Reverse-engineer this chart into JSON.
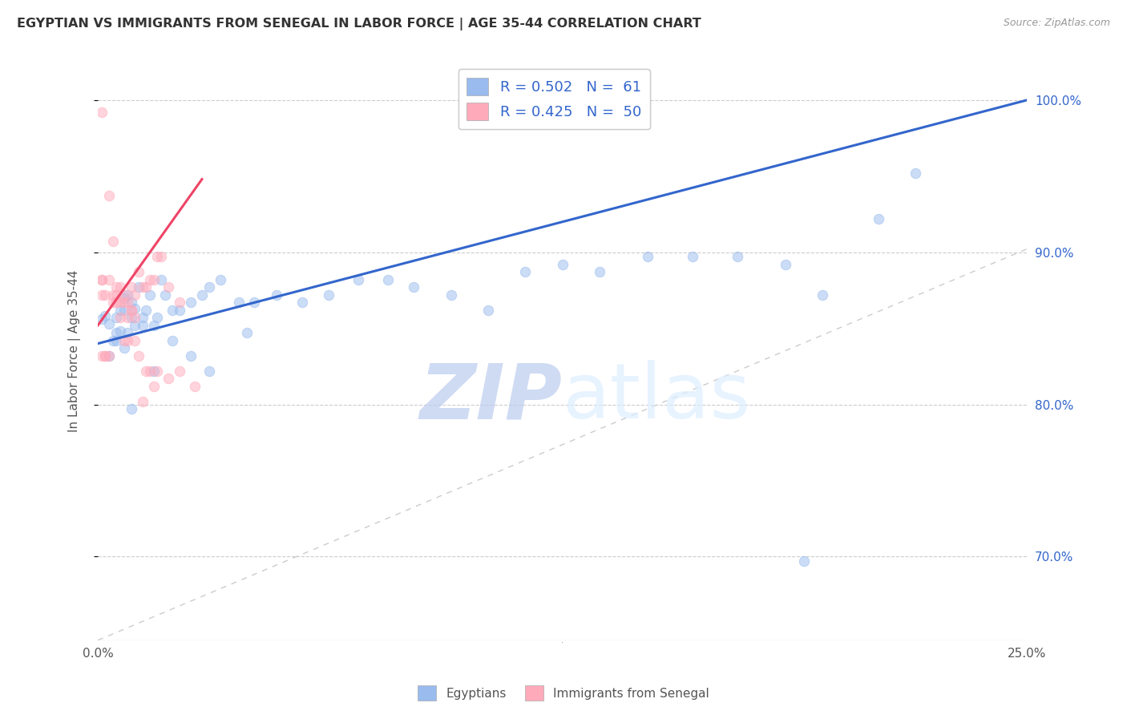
{
  "title": "EGYPTIAN VS IMMIGRANTS FROM SENEGAL IN LABOR FORCE | AGE 35-44 CORRELATION CHART",
  "source": "Source: ZipAtlas.com",
  "ylabel": "In Labor Force | Age 35-44",
  "xlim": [
    0.0,
    0.25
  ],
  "ylim": [
    0.645,
    1.025
  ],
  "xticks": [
    0.0,
    0.05,
    0.1,
    0.15,
    0.2,
    0.25
  ],
  "xticklabels": [
    "0.0%",
    "",
    "",
    "",
    "",
    "25.0%"
  ],
  "ytick_positions": [
    0.7,
    0.8,
    0.9,
    1.0
  ],
  "ytick_labels": [
    "70.0%",
    "80.0%",
    "90.0%",
    "100.0%"
  ],
  "legend_blue_label": "R = 0.502   N =  61",
  "legend_pink_label": "R = 0.425   N =  50",
  "bottom_legend_blue": "Egyptians",
  "bottom_legend_pink": "Immigrants from Senegal",
  "dot_size": 80,
  "dot_alpha": 0.5,
  "blue_color": "#99BBEE",
  "pink_color": "#FFAABB",
  "blue_line_color": "#3366CC",
  "pink_line_color": "#EE4466",
  "identity_line_color": "#CCCCCC",
  "grid_color": "#CCCCCC",
  "watermark_color": "#DDEEFF",
  "blue_x": [
    0.001,
    0.002,
    0.003,
    0.004,
    0.005,
    0.005,
    0.006,
    0.006,
    0.007,
    0.007,
    0.008,
    0.008,
    0.009,
    0.009,
    0.01,
    0.01,
    0.011,
    0.012,
    0.013,
    0.014,
    0.015,
    0.016,
    0.017,
    0.018,
    0.02,
    0.022,
    0.025,
    0.028,
    0.03,
    0.033,
    0.038,
    0.042,
    0.048,
    0.055,
    0.062,
    0.07,
    0.078,
    0.085,
    0.095,
    0.105,
    0.115,
    0.125,
    0.135,
    0.148,
    0.16,
    0.172,
    0.185,
    0.195,
    0.21,
    0.22,
    0.003,
    0.005,
    0.007,
    0.009,
    0.012,
    0.015,
    0.02,
    0.025,
    0.03,
    0.04,
    0.19
  ],
  "blue_y": [
    0.856,
    0.858,
    0.853,
    0.842,
    0.857,
    0.847,
    0.862,
    0.848,
    0.862,
    0.87,
    0.847,
    0.872,
    0.867,
    0.857,
    0.852,
    0.863,
    0.877,
    0.857,
    0.862,
    0.872,
    0.852,
    0.857,
    0.882,
    0.872,
    0.862,
    0.862,
    0.867,
    0.872,
    0.877,
    0.882,
    0.867,
    0.867,
    0.872,
    0.867,
    0.872,
    0.882,
    0.882,
    0.877,
    0.872,
    0.862,
    0.887,
    0.892,
    0.887,
    0.897,
    0.897,
    0.897,
    0.892,
    0.872,
    0.922,
    0.952,
    0.832,
    0.842,
    0.837,
    0.797,
    0.852,
    0.822,
    0.842,
    0.832,
    0.822,
    0.847,
    0.697
  ],
  "pink_x": [
    0.001,
    0.001,
    0.001,
    0.002,
    0.002,
    0.003,
    0.003,
    0.004,
    0.004,
    0.005,
    0.005,
    0.006,
    0.006,
    0.007,
    0.007,
    0.008,
    0.008,
    0.009,
    0.009,
    0.01,
    0.01,
    0.011,
    0.012,
    0.013,
    0.014,
    0.015,
    0.016,
    0.017,
    0.019,
    0.022,
    0.001,
    0.002,
    0.003,
    0.004,
    0.005,
    0.006,
    0.007,
    0.008,
    0.009,
    0.01,
    0.011,
    0.012,
    0.013,
    0.014,
    0.015,
    0.016,
    0.019,
    0.022,
    0.026,
    0.001
  ],
  "pink_y": [
    0.882,
    0.872,
    0.832,
    0.872,
    0.832,
    0.937,
    0.882,
    0.907,
    0.867,
    0.877,
    0.872,
    0.877,
    0.867,
    0.872,
    0.867,
    0.867,
    0.857,
    0.862,
    0.877,
    0.857,
    0.872,
    0.887,
    0.877,
    0.877,
    0.882,
    0.882,
    0.897,
    0.897,
    0.877,
    0.867,
    0.882,
    0.832,
    0.832,
    0.872,
    0.867,
    0.857,
    0.842,
    0.842,
    0.862,
    0.842,
    0.832,
    0.802,
    0.822,
    0.822,
    0.812,
    0.822,
    0.817,
    0.822,
    0.812,
    0.992
  ],
  "blue_line_x": [
    0.0,
    0.25
  ],
  "blue_line_y": [
    0.84,
    1.0
  ],
  "pink_line_x": [
    0.0,
    0.028
  ],
  "pink_line_y": [
    0.852,
    0.948
  ]
}
